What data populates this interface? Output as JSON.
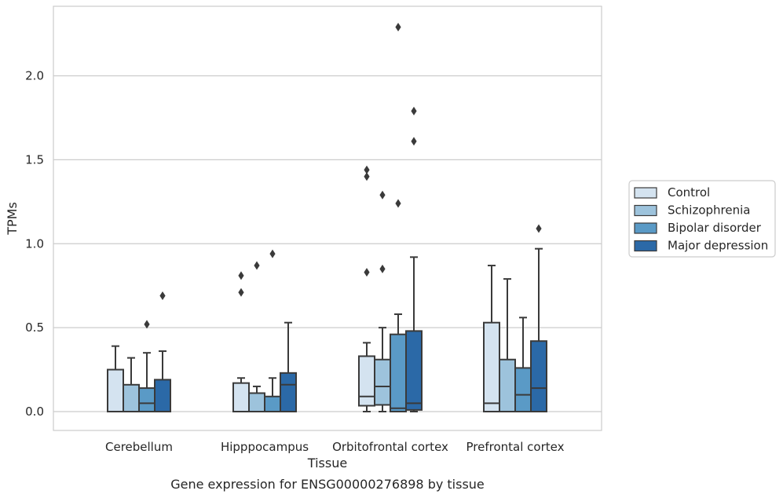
{
  "chart_data": {
    "type": "boxplot",
    "xlabel": "Tissue",
    "ylabel": "TPMs",
    "caption": "Gene expression for ENSG00000276898 by tissue",
    "ylim": [
      -0.11,
      2.42
    ],
    "yticks": [
      0.0,
      0.5,
      1.0,
      1.5,
      2.0
    ],
    "ytick_labels": [
      "0.0",
      "0.5",
      "1.0",
      "1.5",
      "2.0"
    ],
    "grid": "horizontal",
    "legend_position": "right, outside",
    "categories": [
      "Cerebellum",
      "Hipppocampus",
      "Orbitofrontal cortex",
      "Prefrontal cortex"
    ],
    "series": [
      {
        "name": "Control",
        "color": "#d4e3f0",
        "boxes": [
          {
            "low": 0.0,
            "q1": 0.0,
            "median": 0.0,
            "q3": 0.25,
            "high": 0.39,
            "outliers": []
          },
          {
            "low": 0.0,
            "q1": 0.0,
            "median": 0.0,
            "q3": 0.17,
            "high": 0.2,
            "outliers": [
              0.71,
              0.81
            ]
          },
          {
            "low": 0.0,
            "q1": 0.035,
            "median": 0.09,
            "q3": 0.33,
            "high": 0.41,
            "outliers": [
              0.83,
              1.4,
              1.44
            ]
          },
          {
            "low": 0.0,
            "q1": 0.0,
            "median": 0.05,
            "q3": 0.53,
            "high": 0.87,
            "outliers": []
          }
        ]
      },
      {
        "name": "Schizophrenia",
        "color": "#9dc3dc",
        "boxes": [
          {
            "low": 0.0,
            "q1": 0.0,
            "median": 0.0,
            "q3": 0.16,
            "high": 0.32,
            "outliers": []
          },
          {
            "low": 0.0,
            "q1": 0.0,
            "median": 0.0,
            "q3": 0.11,
            "high": 0.15,
            "outliers": [
              0.87
            ]
          },
          {
            "low": 0.0,
            "q1": 0.04,
            "median": 0.15,
            "q3": 0.31,
            "high": 0.5,
            "outliers": [
              0.85,
              1.29
            ]
          },
          {
            "low": 0.0,
            "q1": 0.0,
            "median": 0.0,
            "q3": 0.31,
            "high": 0.79,
            "outliers": []
          }
        ]
      },
      {
        "name": "Bipolar disorder",
        "color": "#5a9ac6",
        "boxes": [
          {
            "low": 0.0,
            "q1": 0.0,
            "median": 0.05,
            "q3": 0.14,
            "high": 0.35,
            "outliers": [
              0.52
            ]
          },
          {
            "low": 0.0,
            "q1": 0.0,
            "median": 0.0,
            "q3": 0.09,
            "high": 0.2,
            "outliers": [
              0.94
            ]
          },
          {
            "low": 0.0,
            "q1": 0.0,
            "median": 0.02,
            "q3": 0.46,
            "high": 0.58,
            "outliers": [
              1.24,
              2.29
            ]
          },
          {
            "low": 0.0,
            "q1": 0.0,
            "median": 0.1,
            "q3": 0.26,
            "high": 0.56,
            "outliers": []
          }
        ]
      },
      {
        "name": "Major depression",
        "color": "#2b69a7",
        "boxes": [
          {
            "low": 0.0,
            "q1": 0.0,
            "median": 0.0,
            "q3": 0.19,
            "high": 0.36,
            "outliers": [
              0.69
            ]
          },
          {
            "low": 0.0,
            "q1": 0.0,
            "median": 0.16,
            "q3": 0.23,
            "high": 0.53,
            "outliers": []
          },
          {
            "low": 0.0,
            "q1": 0.01,
            "median": 0.05,
            "q3": 0.48,
            "high": 0.92,
            "outliers": [
              1.61,
              1.79
            ]
          },
          {
            "low": 0.0,
            "q1": 0.0,
            "median": 0.14,
            "q3": 0.42,
            "high": 0.97,
            "outliers": [
              1.09
            ]
          }
        ]
      }
    ]
  }
}
